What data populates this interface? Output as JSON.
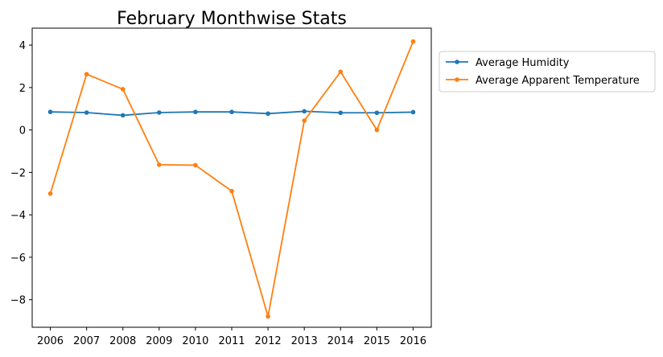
{
  "chart_data": {
    "type": "line",
    "title": "February Monthwise Stats",
    "xlabel": "",
    "ylabel": "",
    "x": [
      2006,
      2007,
      2008,
      2009,
      2010,
      2011,
      2012,
      2013,
      2014,
      2015,
      2016
    ],
    "x_tick_labels": [
      "2006",
      "2007",
      "2008",
      "2009",
      "2010",
      "2011",
      "2012",
      "2013",
      "2014",
      "2015",
      "2016"
    ],
    "y_ticks": [
      4,
      2,
      0,
      -2,
      -4,
      -6,
      -8
    ],
    "y_tick_labels": [
      "4",
      "2",
      "0",
      "−2",
      "−4",
      "−6",
      "−8"
    ],
    "ylim": [
      -9.3,
      4.8
    ],
    "grid": false,
    "legend_position": "upper-right-outside",
    "series": [
      {
        "name": "Average Humidity",
        "color": "#1f77b4",
        "marker": "circle",
        "values": [
          0.85,
          0.82,
          0.69,
          0.82,
          0.85,
          0.85,
          0.77,
          0.88,
          0.81,
          0.81,
          0.84
        ]
      },
      {
        "name": "Average Apparent Temperature",
        "color": "#ff7f0e",
        "marker": "circle",
        "values": [
          -3.0,
          2.63,
          1.92,
          -1.64,
          -1.66,
          -2.88,
          -8.79,
          0.44,
          2.74,
          0.0,
          4.17
        ]
      }
    ]
  }
}
